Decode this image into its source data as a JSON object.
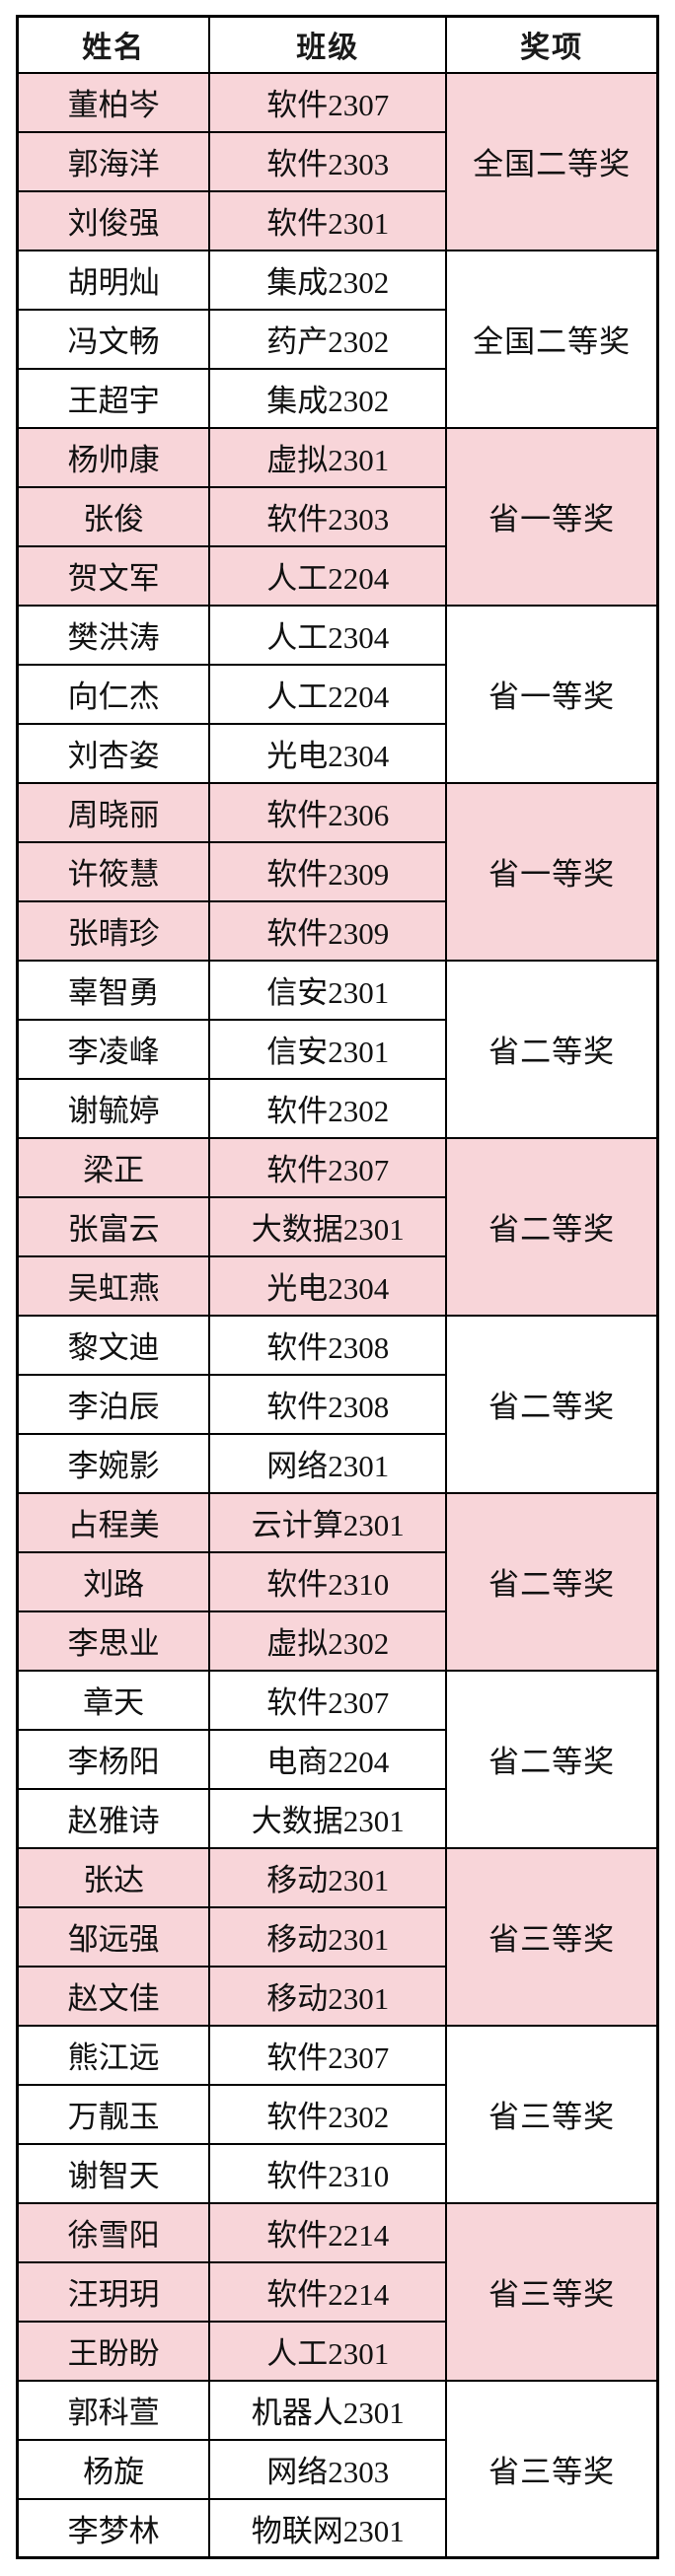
{
  "colors": {
    "row_pink": "#f8d5d9",
    "row_white": "#ffffff",
    "border": "#000000",
    "text": "#111111"
  },
  "chart_data": {
    "type": "table",
    "columns": [
      "姓名",
      "班级",
      "奖项"
    ],
    "legend_position": "none",
    "groups": [
      {
        "award": "全国二等奖",
        "tone": "pink",
        "members": [
          {
            "name": "董柏岑",
            "class": "软件2307"
          },
          {
            "name": "郭海洋",
            "class": "软件2303"
          },
          {
            "name": "刘俊强",
            "class": "软件2301"
          }
        ]
      },
      {
        "award": "全国二等奖",
        "tone": "white",
        "members": [
          {
            "name": "胡明灿",
            "class": "集成2302"
          },
          {
            "name": "冯文畅",
            "class": "药产2302"
          },
          {
            "name": "王超宇",
            "class": "集成2302"
          }
        ]
      },
      {
        "award": "省一等奖",
        "tone": "pink",
        "members": [
          {
            "name": "杨帅康",
            "class": "虚拟2301"
          },
          {
            "name": "张俊",
            "class": "软件2303"
          },
          {
            "name": "贺文军",
            "class": "人工2204"
          }
        ]
      },
      {
        "award": "省一等奖",
        "tone": "white",
        "members": [
          {
            "name": "樊洪涛",
            "class": "人工2304"
          },
          {
            "name": "向仁杰",
            "class": "人工2204"
          },
          {
            "name": "刘杏姿",
            "class": "光电2304"
          }
        ]
      },
      {
        "award": "省一等奖",
        "tone": "pink",
        "members": [
          {
            "name": "周晓丽",
            "class": "软件2306"
          },
          {
            "name": "许筱慧",
            "class": "软件2309"
          },
          {
            "name": "张晴珍",
            "class": "软件2309"
          }
        ]
      },
      {
        "award": "省二等奖",
        "tone": "white",
        "members": [
          {
            "name": "辜智勇",
            "class": "信安2301"
          },
          {
            "name": "李凌峰",
            "class": "信安2301"
          },
          {
            "name": "谢毓婷",
            "class": "软件2302"
          }
        ]
      },
      {
        "award": "省二等奖",
        "tone": "pink",
        "members": [
          {
            "name": "梁正",
            "class": "软件2307"
          },
          {
            "name": "张富云",
            "class": "大数据2301"
          },
          {
            "name": "吴虹燕",
            "class": "光电2304"
          }
        ]
      },
      {
        "award": "省二等奖",
        "tone": "white",
        "members": [
          {
            "name": "黎文迪",
            "class": "软件2308"
          },
          {
            "name": "李泊辰",
            "class": "软件2308"
          },
          {
            "name": "李婉影",
            "class": "网络2301"
          }
        ]
      },
      {
        "award": "省二等奖",
        "tone": "pink",
        "members": [
          {
            "name": "占程美",
            "class": "云计算2301"
          },
          {
            "name": "刘路",
            "class": "软件2310"
          },
          {
            "name": "李思业",
            "class": "虚拟2302"
          }
        ]
      },
      {
        "award": "省二等奖",
        "tone": "white",
        "members": [
          {
            "name": "章天",
            "class": "软件2307"
          },
          {
            "name": "李杨阳",
            "class": "电商2204"
          },
          {
            "name": "赵雅诗",
            "class": "大数据2301"
          }
        ]
      },
      {
        "award": "省三等奖",
        "tone": "pink",
        "members": [
          {
            "name": "张达",
            "class": "移动2301"
          },
          {
            "name": "邹远强",
            "class": "移动2301"
          },
          {
            "name": "赵文佳",
            "class": "移动2301"
          }
        ]
      },
      {
        "award": "省三等奖",
        "tone": "white",
        "members": [
          {
            "name": "熊江远",
            "class": "软件2307"
          },
          {
            "name": "万靓玉",
            "class": "软件2302"
          },
          {
            "name": "谢智天",
            "class": "软件2310"
          }
        ]
      },
      {
        "award": "省三等奖",
        "tone": "pink",
        "members": [
          {
            "name": "徐雪阳",
            "class": "软件2214"
          },
          {
            "name": "汪玥玥",
            "class": "软件2214"
          },
          {
            "name": "王盼盼",
            "class": "人工2301"
          }
        ]
      },
      {
        "award": "省三等奖",
        "tone": "white",
        "members": [
          {
            "name": "郭科萱",
            "class": "机器人2301"
          },
          {
            "name": "杨旋",
            "class": "网络2303"
          },
          {
            "name": "李梦林",
            "class": "物联网2301"
          }
        ]
      }
    ]
  }
}
